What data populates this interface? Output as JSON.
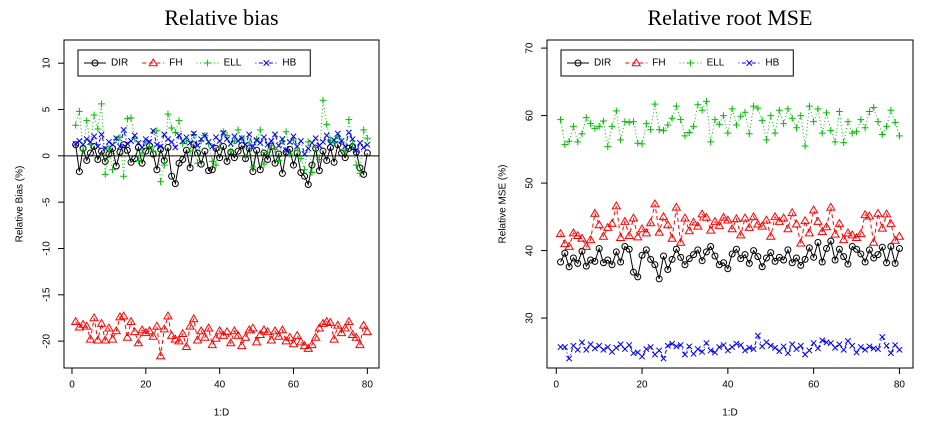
{
  "chart_data": [
    {
      "type": "line",
      "title": "Relative bias",
      "xlabel": "1:D",
      "ylabel": "Relative Bias (%)",
      "x": [
        1,
        2,
        3,
        4,
        5,
        6,
        7,
        8,
        9,
        10,
        11,
        12,
        13,
        14,
        15,
        16,
        17,
        18,
        19,
        20,
        21,
        22,
        23,
        24,
        25,
        26,
        27,
        28,
        29,
        30,
        31,
        32,
        33,
        34,
        35,
        36,
        37,
        38,
        39,
        40,
        41,
        42,
        43,
        44,
        45,
        46,
        47,
        48,
        49,
        50,
        51,
        52,
        53,
        54,
        55,
        56,
        57,
        58,
        59,
        60,
        61,
        62,
        63,
        64,
        65,
        66,
        67,
        68,
        69,
        70,
        71,
        72,
        73,
        74,
        75,
        76,
        77,
        78,
        79,
        80
      ],
      "xlim": [
        -2.16,
        83.16
      ],
      "xticks": [
        0,
        20,
        40,
        60,
        80
      ],
      "ylim": [
        -22.9,
        12.5
      ],
      "yticks": [
        -20,
        -15,
        -10,
        -5,
        0,
        5,
        10
      ],
      "hline": 0,
      "legend": "top-left",
      "series": [
        {
          "name": "DIR",
          "color": "#000000",
          "marker": "circle",
          "linestyle": "solid",
          "values": [
            1.2,
            -1.7,
            0.8,
            -0.5,
            0.3,
            1.0,
            -0.4,
            0.5,
            -0.6,
            0.2,
            0.8,
            -1.1,
            0.4,
            1.2,
            0.6,
            -0.7,
            -0.3,
            0.9,
            -0.8,
            0.5,
            1.1,
            0.2,
            -1.5,
            0.7,
            -0.5,
            0.9,
            -2.2,
            -3.0,
            -0.8,
            -0.4,
            0.6,
            -1.3,
            1.2,
            0.3,
            -0.9,
            0.5,
            -1.6,
            -1.5,
            0.8,
            -0.2,
            1.0,
            -0.6,
            0.4,
            -0.2,
            0.5,
            1.1,
            -0.3,
            0.8,
            -1.7,
            0.6,
            -1.5,
            0.3,
            -0.4,
            1.0,
            -0.8,
            0.2,
            -1.9,
            0.4,
            0.7,
            -1.0,
            0.3,
            -1.8,
            -2.2,
            -3.1,
            -1.0,
            0.8,
            -1.6,
            0.5,
            -0.5,
            0.9,
            -0.7,
            1.2,
            0.3,
            -0.2,
            0.8,
            1.0,
            0.4,
            -1.3,
            -2.0,
            0.3
          ]
        },
        {
          "name": "FH",
          "color": "#ff0000",
          "marker": "triangle",
          "linestyle": "dashed",
          "values": [
            -17.9,
            -18.5,
            -18.2,
            -18.4,
            -19.8,
            -17.5,
            -19.9,
            -18.1,
            -19.9,
            -18.6,
            -19.8,
            -18.9,
            -17.4,
            -17.3,
            -19.6,
            -17.9,
            -19.0,
            -20.2,
            -18.8,
            -19.1,
            -18.9,
            -19.5,
            -18.4,
            -21.6,
            -18.7,
            -17.3,
            -19.4,
            -19.8,
            -20.0,
            -19.2,
            -20.6,
            -18.4,
            -17.6,
            -19.9,
            -18.9,
            -19.6,
            -18.6,
            -20.4,
            -19.7,
            -18.9,
            -19.4,
            -19.0,
            -20.2,
            -18.9,
            -19.4,
            -20.5,
            -19.6,
            -18.8,
            -18.6,
            -20.1,
            -19.3,
            -18.8,
            -19.0,
            -19.9,
            -18.9,
            -19.5,
            -18.8,
            -20.0,
            -19.6,
            -20.3,
            -19.4,
            -20.1,
            -20.5,
            -20.8,
            -20.4,
            -19.6,
            -18.6,
            -18.1,
            -17.9,
            -18.0,
            -19.8,
            -18.3,
            -19.1,
            -18.6,
            -17.9,
            -19.3,
            -19.6,
            -20.4,
            -18.3,
            -19.0
          ]
        },
        {
          "name": "ELL",
          "color": "#00bb00",
          "marker": "plus",
          "linestyle": "dotted",
          "values": [
            3.3,
            4.8,
            0.6,
            3.8,
            1.2,
            4.4,
            2.9,
            5.6,
            -2.0,
            0.8,
            -1.5,
            1.8,
            2.0,
            -2.2,
            4.0,
            4.1,
            1.9,
            -0.5,
            0.3,
            1.5,
            1.0,
            0.5,
            2.7,
            -2.8,
            -1.0,
            4.5,
            3.0,
            2.5,
            3.8,
            1.3,
            1.6,
            0.5,
            2.3,
            -0.8,
            1.6,
            2.2,
            1.3,
            -0.6,
            -1.0,
            0.9,
            2.6,
            2.2,
            0.5,
            1.6,
            2.8,
            1.9,
            -0.2,
            1.4,
            -1.2,
            1.8,
            2.8,
            -0.9,
            0.4,
            1.1,
            0.7,
            -0.5,
            1.6,
            2.6,
            0.2,
            1.7,
            0.6,
            -0.3,
            -1.5,
            1.5,
            -1.8,
            0.9,
            -0.4,
            6.0,
            3.4,
            1.7,
            1.4,
            2.1,
            1.5,
            0.4,
            3.9,
            1.2,
            -1.0,
            -1.9,
            2.8,
            1.9
          ]
        },
        {
          "name": "HB",
          "color": "#0000ff",
          "marker": "x",
          "linestyle": "dotdash",
          "values": [
            1.3,
            1.6,
            1.2,
            1.8,
            1.5,
            2.1,
            1.0,
            2.3,
            0.8,
            1.5,
            1.2,
            1.9,
            1.0,
            2.8,
            1.3,
            1.6,
            2.2,
            1.4,
            0.9,
            1.8,
            1.5,
            2.7,
            1.2,
            1.0,
            2.3,
            1.8,
            1.5,
            0.9,
            2.2,
            1.6,
            2.0,
            1.4,
            2.4,
            1.1,
            1.8,
            2.2,
            1.5,
            1.0,
            2.0,
            1.6,
            2.5,
            1.8,
            1.3,
            2.1,
            1.6,
            1.9,
            1.2,
            2.3,
            1.0,
            1.7,
            1.4,
            2.0,
            1.2,
            1.6,
            2.3,
            1.1,
            1.8,
            0.6,
            1.5,
            2.1,
            1.0,
            1.6,
            0.2,
            0.8,
            1.4,
            1.9,
            1.1,
            1.5,
            2.2,
            1.3,
            1.7,
            2.4,
            1.6,
            1.0,
            2.5,
            1.8,
            0.6,
            1.4,
            0.9,
            1.2
          ]
        }
      ]
    },
    {
      "type": "line",
      "title": "Relative root MSE",
      "xlabel": "1:D",
      "ylabel": "Relative MSE (%)",
      "x": [
        1,
        2,
        3,
        4,
        5,
        6,
        7,
        8,
        9,
        10,
        11,
        12,
        13,
        14,
        15,
        16,
        17,
        18,
        19,
        20,
        21,
        22,
        23,
        24,
        25,
        26,
        27,
        28,
        29,
        30,
        31,
        32,
        33,
        34,
        35,
        36,
        37,
        38,
        39,
        40,
        41,
        42,
        43,
        44,
        45,
        46,
        47,
        48,
        49,
        50,
        51,
        52,
        53,
        54,
        55,
        56,
        57,
        58,
        59,
        60,
        61,
        62,
        63,
        64,
        65,
        66,
        67,
        68,
        69,
        70,
        71,
        72,
        73,
        74,
        75,
        76,
        77,
        78,
        79,
        80
      ],
      "xlim": [
        -2.16,
        83.16
      ],
      "xticks": [
        0,
        20,
        40,
        60,
        80
      ],
      "ylim": [
        22.6,
        71.2
      ],
      "yticks": [
        30,
        40,
        50,
        60,
        70
      ],
      "legend": "top-left",
      "series": [
        {
          "name": "DIR",
          "color": "#000000",
          "marker": "circle",
          "linestyle": "solid",
          "values": [
            38.3,
            39.6,
            37.6,
            38.9,
            38.1,
            39.9,
            37.7,
            38.6,
            38.4,
            40.3,
            38.2,
            38.6,
            37.9,
            39.8,
            38.3,
            40.6,
            40.2,
            36.8,
            36.1,
            39.3,
            40.1,
            38.7,
            37.9,
            35.8,
            39.2,
            37.2,
            38.7,
            40.2,
            39.0,
            37.9,
            38.8,
            39.4,
            40.1,
            38.5,
            39.8,
            40.6,
            39.2,
            37.9,
            38.2,
            37.3,
            39.5,
            40.2,
            38.8,
            39.4,
            38.1,
            40.0,
            39.1,
            37.6,
            38.9,
            39.7,
            38.4,
            39.0,
            38.6,
            40.1,
            38.2,
            38.9,
            37.8,
            38.7,
            40.4,
            39.0,
            41.2,
            38.3,
            40.3,
            41.4,
            38.6,
            40.2,
            39.1,
            38.0,
            40.6,
            40.2,
            39.5,
            38.3,
            40.1,
            38.9,
            39.4,
            40.5,
            38.2,
            40.6,
            38.1,
            40.3
          ]
        },
        {
          "name": "FH",
          "color": "#ff0000",
          "marker": "triangle",
          "linestyle": "dashed",
          "values": [
            42.5,
            41.0,
            40.6,
            42.6,
            42.2,
            41.8,
            40.6,
            41.6,
            45.5,
            43.8,
            42.1,
            43.4,
            44.0,
            46.6,
            41.9,
            44.3,
            42.2,
            44.8,
            42.0,
            43.2,
            42.6,
            44.1,
            46.9,
            42.7,
            45.0,
            43.8,
            41.8,
            46.4,
            41.2,
            44.8,
            42.9,
            44.2,
            43.6,
            45.4,
            44.9,
            43.0,
            44.3,
            43.7,
            44.9,
            44.5,
            43.2,
            44.7,
            42.3,
            44.8,
            43.4,
            45.0,
            43.9,
            43.6,
            44.5,
            42.1,
            45.0,
            44.3,
            44.8,
            43.2,
            45.6,
            43.9,
            41.1,
            44.4,
            42.6,
            46.0,
            44.3,
            42.8,
            43.5,
            46.4,
            42.4,
            44.0,
            41.6,
            42.6,
            42.3,
            41.9,
            42.5,
            45.3,
            45.1,
            41.2,
            45.5,
            43.3,
            45.4,
            44.0,
            41.5,
            42.1
          ]
        },
        {
          "name": "ELL",
          "color": "#00bb00",
          "marker": "plus",
          "linestyle": "dotted",
          "values": [
            59.4,
            55.7,
            56.2,
            58.4,
            56.1,
            57.3,
            59.7,
            58.8,
            58.1,
            58.4,
            59.2,
            55.4,
            58.4,
            60.7,
            56.4,
            59.1,
            59.0,
            59.1,
            55.9,
            55.8,
            58.8,
            57.9,
            61.7,
            57.9,
            57.8,
            58.6,
            59.6,
            61.4,
            59.4,
            57.0,
            57.5,
            58.4,
            61.6,
            60.8,
            62.1,
            56.1,
            59.4,
            58.7,
            60.0,
            57.4,
            61.0,
            58.6,
            59.9,
            60.5,
            57.3,
            61.4,
            61.1,
            59.3,
            56.4,
            60.0,
            57.4,
            60.8,
            58.8,
            61.0,
            59.6,
            58.2,
            60.0,
            55.5,
            61.4,
            59.1,
            61.0,
            57.4,
            60.4,
            57.8,
            56.1,
            60.6,
            56.0,
            59.1,
            57.4,
            57.6,
            59.4,
            58.2,
            60.6,
            61.2,
            59.1,
            57.2,
            58.4,
            60.8,
            59.0,
            57.0
          ]
        },
        {
          "name": "HB",
          "color": "#0000ff",
          "marker": "x",
          "linestyle": "dotdash",
          "values": [
            25.7,
            25.7,
            24.0,
            25.9,
            25.3,
            26.4,
            25.3,
            26.1,
            25.5,
            25.9,
            25.3,
            25.7,
            25.0,
            25.6,
            26.1,
            25.4,
            26.0,
            24.8,
            24.9,
            24.3,
            25.4,
            25.7,
            24.6,
            25.2,
            24.0,
            25.9,
            26.2,
            25.8,
            26.0,
            24.6,
            25.8,
            24.7,
            25.4,
            25.0,
            26.3,
            25.2,
            24.9,
            25.7,
            26.0,
            25.2,
            25.7,
            26.2,
            26.0,
            25.2,
            25.6,
            25.4,
            27.4,
            25.8,
            26.4,
            25.9,
            25.6,
            25.1,
            25.8,
            24.8,
            26.1,
            25.4,
            25.9,
            24.6,
            25.2,
            26.3,
            25.5,
            26.7,
            26.4,
            26.3,
            25.6,
            26.1,
            25.3,
            26.6,
            25.9,
            24.9,
            25.7,
            25.3,
            25.8,
            25.5,
            25.4,
            27.2,
            25.9,
            24.8,
            26.0,
            25.3
          ]
        }
      ]
    }
  ]
}
